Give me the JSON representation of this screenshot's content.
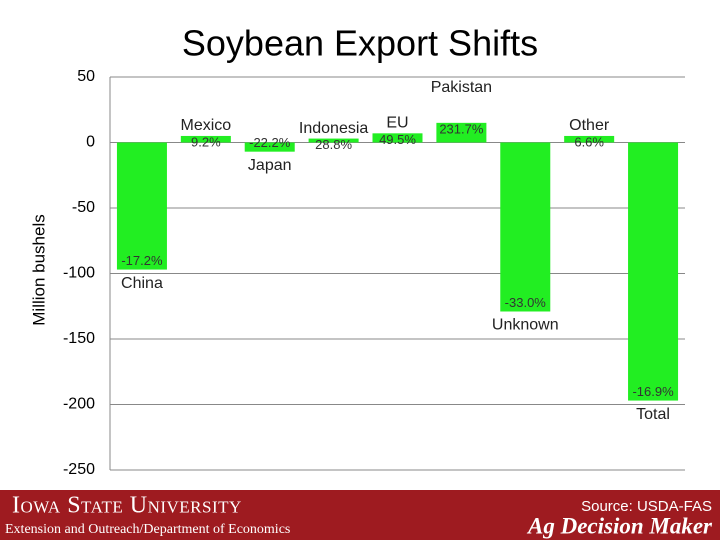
{
  "chart_data": {
    "type": "bar",
    "title": "Soybean Export Shifts",
    "y_label": "Million bushels",
    "categories": [
      "China",
      "Mexico",
      "Japan",
      "Indonesia",
      "EU",
      "Pakistan",
      "Unknown",
      "Other",
      "Total"
    ],
    "values": [
      -97,
      5,
      -7,
      3,
      7,
      15,
      -129,
      5,
      -197
    ],
    "annotations": [
      "-17.2%",
      "9.2%",
      "-22.2%",
      "28.8%",
      "49.5%",
      "231.7%",
      "-33.0%",
      "6.6%",
      "-16.9%"
    ],
    "color": "#22ee22",
    "ylim": [
      -250,
      50
    ],
    "yticks": [
      -250,
      -200,
      -150,
      -100,
      -50,
      0,
      50
    ],
    "grid": true
  },
  "footer": {
    "university": "Iowa State University",
    "department": "Extension and Outreach/Department of Economics",
    "source": "Source: USDA-FAS",
    "brand": "Ag Decision Maker"
  }
}
